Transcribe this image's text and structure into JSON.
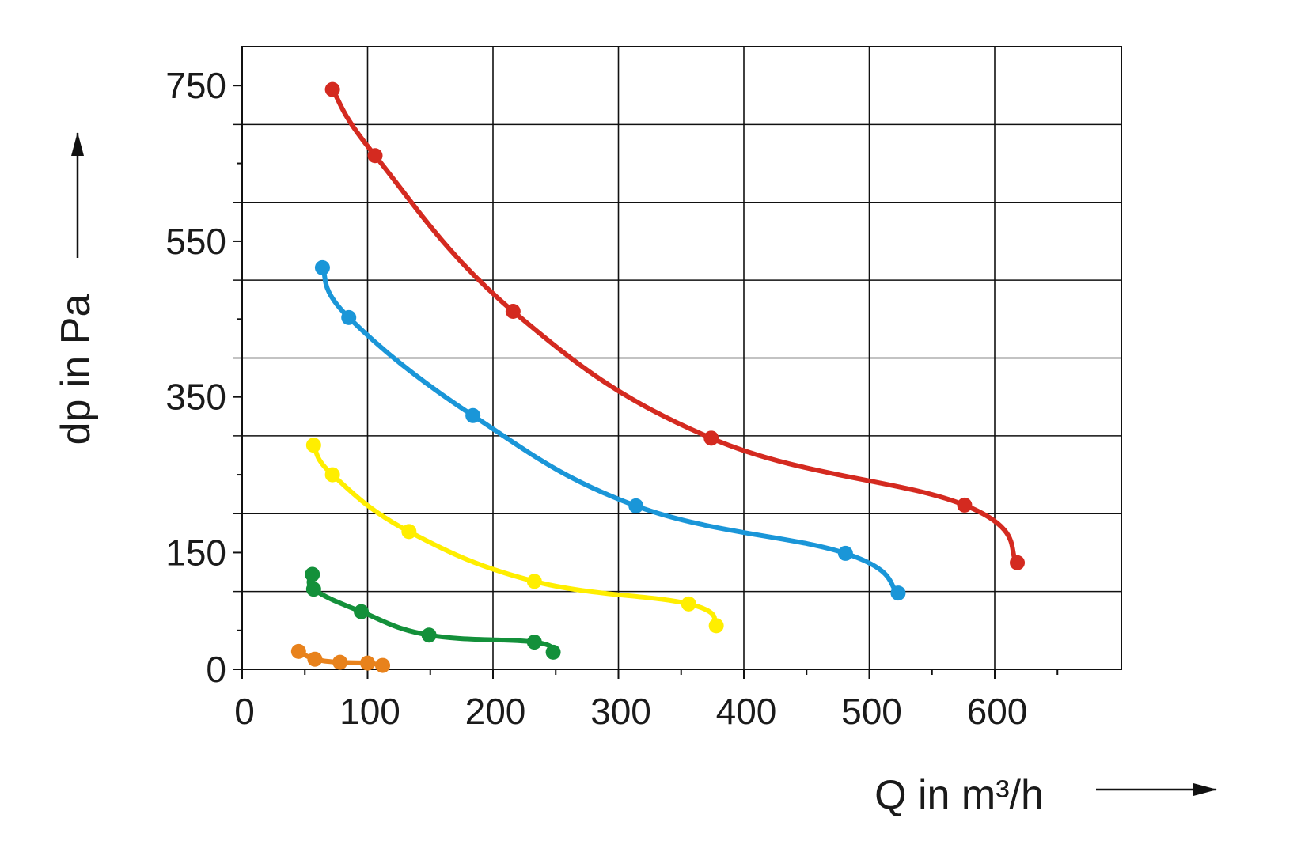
{
  "chart_data": {
    "type": "line",
    "title": "",
    "xlabel": "Q in m³/h",
    "ylabel": "dp in Pa",
    "xlim": [
      0,
      700
    ],
    "ylim": [
      0,
      800
    ],
    "x_ticks": [
      0,
      100,
      200,
      300,
      400,
      500,
      600
    ],
    "x_tick_labels": [
      "0",
      "100",
      "200",
      "300",
      "400",
      "500",
      "600"
    ],
    "y_ticks": [
      0,
      150,
      350,
      550,
      750
    ],
    "y_tick_labels": [
      "0",
      "150",
      "350",
      "550",
      "750"
    ],
    "x_gridlines": [
      100,
      200,
      300,
      400,
      500,
      600
    ],
    "y_gridlines": [
      100,
      200,
      300,
      400,
      500,
      600,
      700
    ],
    "x_minor_ticks": [
      50,
      150,
      250,
      350,
      450,
      550,
      650
    ],
    "y_minor_ticks": [
      50,
      250,
      450,
      650
    ],
    "grid": true,
    "legend": "none",
    "series": [
      {
        "color": "#d42a20",
        "points": [
          [
            72,
            745
          ],
          [
            106,
            660
          ],
          [
            216,
            460
          ],
          [
            374,
            297
          ],
          [
            576,
            211
          ],
          [
            618,
            137
          ]
        ]
      },
      {
        "color": "#1a96d8",
        "points": [
          [
            64,
            516
          ],
          [
            85,
            452
          ],
          [
            184,
            326
          ],
          [
            314,
            210
          ],
          [
            481,
            149
          ],
          [
            523,
            98
          ]
        ]
      },
      {
        "color": "#ffee00",
        "points": [
          [
            57,
            288
          ],
          [
            72,
            250
          ],
          [
            133,
            177
          ],
          [
            233,
            113
          ],
          [
            356,
            84
          ],
          [
            378,
            56
          ]
        ]
      },
      {
        "color": "#13903a",
        "points": [
          [
            56,
            122
          ],
          [
            57,
            103
          ],
          [
            95,
            74
          ],
          [
            149,
            44
          ],
          [
            233,
            35
          ],
          [
            248,
            22
          ]
        ]
      },
      {
        "color": "#e8821c",
        "points": [
          [
            45,
            23
          ],
          [
            58,
            13
          ],
          [
            78,
            9
          ],
          [
            100,
            8
          ],
          [
            112,
            5
          ]
        ]
      }
    ]
  }
}
